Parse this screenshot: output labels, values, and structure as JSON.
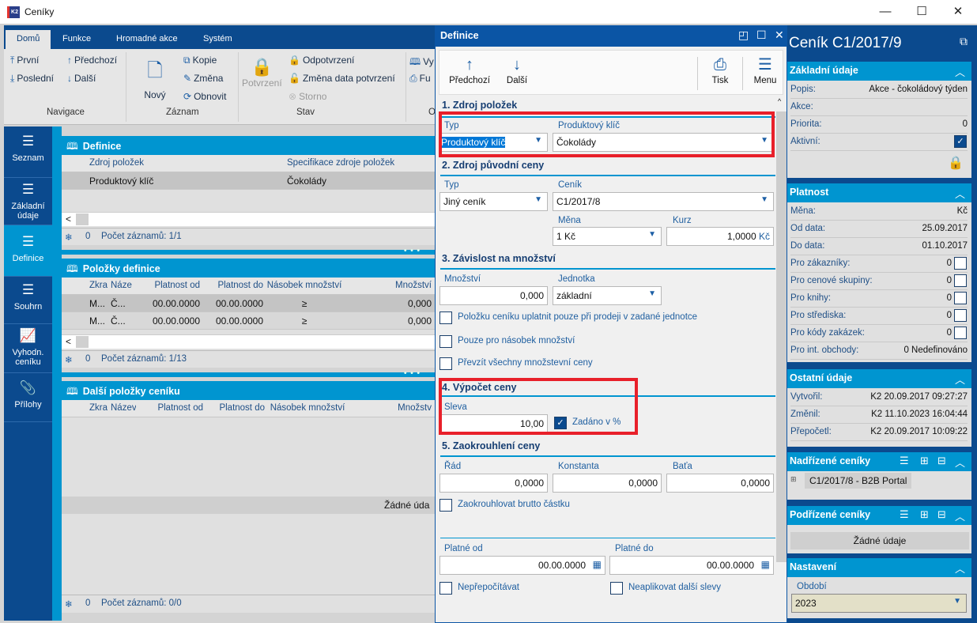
{
  "window": {
    "title": "Ceníky",
    "controls": [
      "minimize",
      "maximize",
      "close"
    ]
  },
  "ribbon": {
    "tabs": [
      {
        "label": "Domů",
        "active": true
      },
      {
        "label": "Funkce"
      },
      {
        "label": "Hromadné akce"
      },
      {
        "label": "Systém"
      }
    ],
    "navigace": {
      "label": "Navigace",
      "first": "První",
      "last": "Poslední",
      "prev": "Předchozí",
      "next": "Další"
    },
    "zaznam": {
      "label": "Záznam",
      "new": "Nový",
      "copy": "Kopie",
      "change": "Změna",
      "refresh": "Obnovit"
    },
    "stav": {
      "label": "Stav",
      "confirm": "Potvrzení",
      "unconfirm": "Odpotvrzení",
      "change_date": "Změna data potvrzení",
      "cancel": "Storno"
    },
    "other": {
      "label": "O",
      "b1": "Vy",
      "b2": "Fu"
    }
  },
  "nav": {
    "items": [
      {
        "label": "Seznam"
      },
      {
        "label": "Základní údaje"
      },
      {
        "label": "Definice",
        "active": true
      },
      {
        "label": "Souhrn"
      },
      {
        "label": "Vyhodn. ceníku"
      },
      {
        "label": "Přílohy"
      }
    ]
  },
  "panels": {
    "definice": {
      "title": "Definice",
      "columns": [
        "Zdroj položek",
        "Specifikace zdroje položek"
      ],
      "rows": [
        [
          "Produktový klíč",
          "Čokolády"
        ]
      ],
      "footer_count": "0",
      "footer_text": "Počet záznamů: 1/1"
    },
    "polozky": {
      "title": "Položky definice",
      "columns": [
        "Zkra",
        "Náze",
        "Platnost od",
        "Platnost do",
        "Násobek množství",
        "Množství"
      ],
      "rows": [
        [
          "M...",
          "Č...",
          "00.00.0000",
          "00.00.0000",
          "≥",
          "0,000"
        ],
        [
          "M...",
          "Č...",
          "00.00.0000",
          "00.00.0000",
          "≥",
          "0,000"
        ]
      ],
      "footer_count": "0",
      "footer_text": "Počet záznamů: 1/13"
    },
    "dalsi": {
      "title": "Další položky ceníku",
      "columns": [
        "Zkra",
        "Název",
        "Platnost od",
        "Platnost do",
        "Násobek množství",
        "Množstv"
      ],
      "empty": "Žádné úda",
      "footer_count": "0",
      "footer_text": "Počet záznamů: 0/0"
    }
  },
  "dialog": {
    "title": "Definice",
    "toolbar": {
      "prev": "Předchozí",
      "next": "Další",
      "print": "Tisk",
      "menu": "Menu"
    },
    "s1": {
      "title": "1. Zdroj položek",
      "typ_label": "Typ",
      "typ_value": "Produktový klíč",
      "key_label": "Produktový klíč",
      "key_value": "Čokolády"
    },
    "s2": {
      "title": "2. Zdroj původní ceny",
      "typ_label": "Typ",
      "typ_value": "Jiný ceník",
      "cenik_label": "Ceník",
      "cenik_value": "C1/2017/8",
      "mena_label": "Měna",
      "mena_value": "1 Kč",
      "kurz_label": "Kurz",
      "kurz_value": "1,0000",
      "kurz_unit": "Kč"
    },
    "s3": {
      "title": "3. Závislost na množství",
      "mnozstvi_label": "Množství",
      "mnozstvi_value": "0,000",
      "jednotka_label": "Jednotka",
      "jednotka_value": "základní",
      "checks": [
        {
          "label": "Položku ceníku uplatnit pouze při prodeji v zadané jednotce",
          "checked": false
        },
        {
          "label": "Pouze pro násobek množství",
          "checked": false
        },
        {
          "label": "Převzít všechny množstevní ceny",
          "checked": false
        }
      ]
    },
    "s4": {
      "title": "4. Výpočet ceny",
      "sleva_label": "Sleva",
      "sleva_value": "10,00",
      "percent_label": "Zadáno v %",
      "percent_checked": true
    },
    "s5": {
      "title": "5. Zaokrouhlení ceny",
      "rad_label": "Řád",
      "rad_value": "0,0000",
      "konst_label": "Konstanta",
      "konst_value": "0,0000",
      "bata_label": "Baťa",
      "bata_value": "0,0000",
      "brutto_label": "Zaokrouhlovat brutto částku",
      "brutto_checked": false
    },
    "validity": {
      "from_label": "Platné od",
      "from_value": "00.00.0000",
      "to_label": "Platné do",
      "to_value": "00.00.0000",
      "norecalc_label": "Nepřepočítávat",
      "nodiscount_label": "Neaplikovat další slevy"
    }
  },
  "right": {
    "title": "Ceník C1/2017/9",
    "zakladni": {
      "title": "Základní údaje",
      "rows": [
        {
          "k": "Popis:",
          "v": "Akce - čokoládový týden"
        },
        {
          "k": "Akce:",
          "v": ""
        },
        {
          "k": "Priorita:",
          "v": "0"
        },
        {
          "k": "Aktivní:",
          "v": "",
          "check": true
        }
      ],
      "locked": true
    },
    "platnost": {
      "title": "Platnost",
      "rows": [
        {
          "k": "Měna:",
          "v": "Kč"
        },
        {
          "k": "Od data:",
          "v": "25.09.2017"
        },
        {
          "k": "Do data:",
          "v": "01.10.2017"
        },
        {
          "k": "Pro zákazníky:",
          "v": "0",
          "check": false
        },
        {
          "k": "Pro cenové skupiny:",
          "v": "0",
          "check": false
        },
        {
          "k": "Pro knihy:",
          "v": "0",
          "check": false
        },
        {
          "k": "Pro střediska:",
          "v": "0",
          "check": false
        },
        {
          "k": "Pro kódy zakázek:",
          "v": "0",
          "check": false
        },
        {
          "k": "Pro int. obchody:",
          "v": "0 Nedefinováno"
        }
      ]
    },
    "ostatni": {
      "title": "Ostatní údaje",
      "rows": [
        {
          "k": "Vytvořil:",
          "v": "K2 20.09.2017 09:27:27"
        },
        {
          "k": "Změnil:",
          "v": "K2 11.10.2023 16:04:44"
        },
        {
          "k": "Přepočetl:",
          "v": "K2 20.09.2017 10:09:22"
        }
      ]
    },
    "nadrizene": {
      "title": "Nadřízené ceníky",
      "item": "C1/2017/8 - B2B Portal"
    },
    "podrizene": {
      "title": "Podřízené ceníky",
      "empty": "Žádné údaje"
    },
    "nastaveni": {
      "title": "Nastavení",
      "obdobi_label": "Období",
      "obdobi_value": "2023"
    }
  },
  "colors": {
    "navy": "#0b4a8e",
    "accent": "#0095d0",
    "dialog_header": "#0b55a5",
    "highlight": "#e8202a",
    "lock": "#3dbf74"
  }
}
